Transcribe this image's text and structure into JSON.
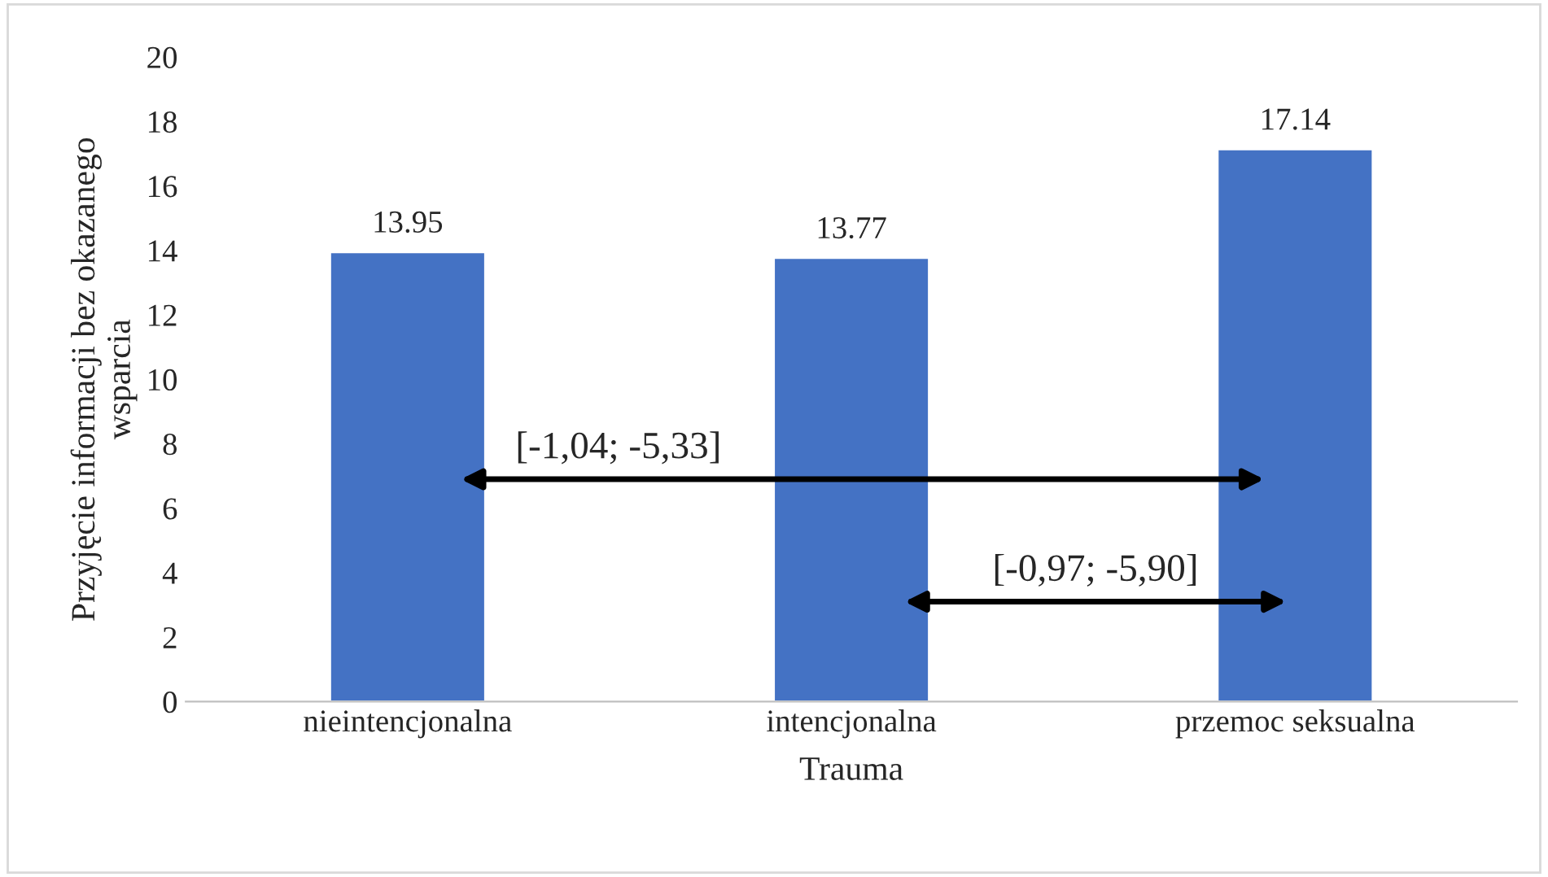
{
  "chart_data": {
    "type": "bar",
    "categories": [
      "nieintencjonalna",
      "intencjonalna",
      "przemoc seksualna"
    ],
    "values": [
      13.95,
      13.77,
      17.14
    ],
    "color": "#4472c4",
    "data_labels": true,
    "ylim": [
      0,
      20
    ],
    "yticks": [
      0,
      2,
      4,
      6,
      8,
      10,
      12,
      14,
      16,
      18,
      20
    ],
    "xlabel": "Trauma",
    "ylabel": "Przyjęcie informacji bez okazanego\nwsparcia",
    "annotations": [
      "[-1,04; -5,33]",
      "[-0,97; -5,90]"
    ],
    "grid": false,
    "legend": false
  }
}
